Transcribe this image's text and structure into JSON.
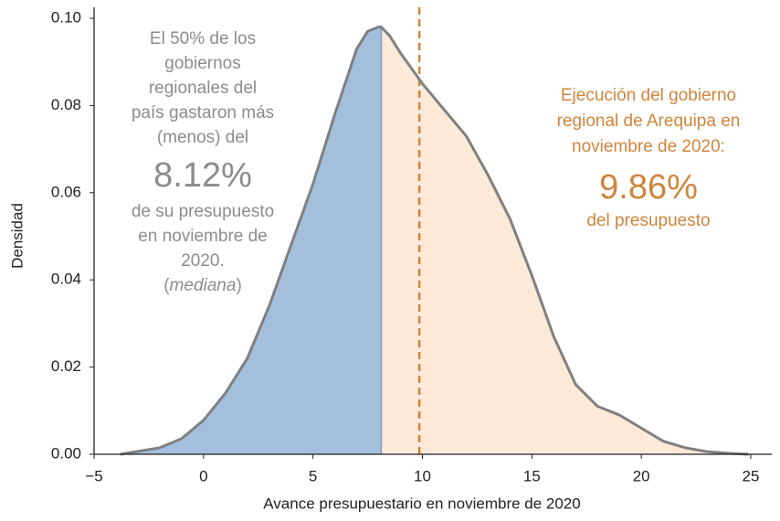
{
  "chart_data": {
    "type": "kde",
    "xlabel": "Avance presupuestario en noviembre de 2020",
    "ylabel": "Densidad",
    "x": [
      -3.8,
      -2,
      -1,
      0,
      1,
      2,
      3,
      4,
      5,
      6,
      7,
      7.5,
      8,
      8.12,
      8.5,
      9,
      10,
      11,
      12,
      13,
      14,
      15,
      16,
      17,
      18,
      19,
      20,
      21,
      22,
      23,
      24,
      24.9
    ],
    "values": [
      0,
      0.0015,
      0.0036,
      0.0078,
      0.014,
      0.022,
      0.034,
      0.048,
      0.062,
      0.078,
      0.093,
      0.097,
      0.098,
      0.098,
      0.096,
      0.092,
      0.085,
      0.079,
      0.073,
      0.064,
      0.054,
      0.041,
      0.027,
      0.016,
      0.011,
      0.009,
      0.006,
      0.003,
      0.0015,
      0.0006,
      0.0002,
      0
    ],
    "line_color": "#808080",
    "lower_color": "#a3bfdc",
    "upper_color": "#fde9d8",
    "median": 8.12,
    "median_color": "#7a9fca",
    "median_label": "8.12%",
    "marker": 9.86,
    "marker_color": "#d0843b",
    "marker_label": "9.86%",
    "left_note_top": [
      "El 50% de los",
      "gobiernos",
      "regionales del",
      "país gastaron más",
      "(menos) del"
    ],
    "left_note_bottom": [
      "de su presupuesto",
      "en noviembre de",
      "2020."
    ],
    "left_note_end": [
      "(",
      "mediana",
      ")"
    ],
    "left_note_color": "#8c8c8c",
    "right_note_top": [
      "Ejecución del gobierno",
      "regional de Arequipa en",
      "noviembre de 2020:"
    ],
    "right_note_bottom": "del presupuesto",
    "xlim": [
      -5,
      25
    ],
    "ylim": [
      0,
      0.1
    ],
    "xticks": [
      {
        "value": -5,
        "label": "−5"
      },
      0,
      5,
      10,
      15,
      20,
      25
    ],
    "yticks": [
      {
        "value": 0,
        "label": "0.00"
      },
      {
        "value": 0.02,
        "label": "0.02"
      },
      {
        "value": 0.04,
        "label": "0.04"
      },
      {
        "value": 0.06,
        "label": "0.06"
      },
      {
        "value": 0.08,
        "label": "0.08"
      },
      {
        "value": 0.1,
        "label": "0.10"
      }
    ]
  }
}
